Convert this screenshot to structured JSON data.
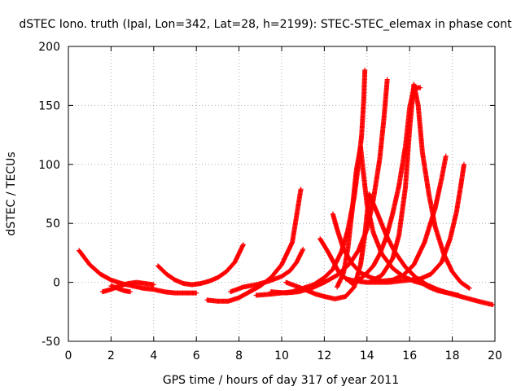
{
  "chart_data": {
    "type": "scatter",
    "title": "dSTEC Iono. truth (Ipal, Lon=342, Lat=28, h=2199): STEC-STEC_elemax in phase cont",
    "xlabel": "GPS time / hours of day 317 of year 2011",
    "ylabel": "dSTEC  / TECUs",
    "xlim": [
      0,
      20
    ],
    "ylim": [
      -50,
      200
    ],
    "xticks": [
      0,
      2,
      4,
      6,
      8,
      10,
      12,
      14,
      16,
      18,
      20
    ],
    "yticks": [
      -50,
      0,
      50,
      100,
      150,
      200
    ],
    "grid": true,
    "legend": "none",
    "marker": "+",
    "color": "#ff0000",
    "series": [
      {
        "x": [
          0.5,
          1.0,
          1.5,
          2.0,
          2.5,
          3.0,
          3.5,
          4.0,
          4.5,
          5.0,
          5.5,
          6.0
        ],
        "y": [
          27,
          15,
          7,
          2,
          -1,
          -3,
          -5,
          -6,
          -8,
          -9,
          -9,
          -9
        ]
      },
      {
        "x": [
          1.6,
          2.0,
          2.4,
          2.8,
          3.2,
          3.6,
          4.0
        ],
        "y": [
          -8,
          -6,
          -3,
          -1,
          0,
          -1,
          -2
        ]
      },
      {
        "x": [
          2.0,
          2.3,
          2.6,
          2.9
        ],
        "y": [
          -3,
          -5,
          -7,
          -8
        ]
      },
      {
        "x": [
          4.2,
          4.6,
          5.0,
          5.4,
          5.8,
          6.2,
          6.6,
          7.0,
          7.4,
          7.8,
          8.2
        ],
        "y": [
          14,
          7,
          2,
          -1,
          -2,
          -1,
          1,
          4,
          9,
          17,
          32
        ]
      },
      {
        "x": [
          6.5,
          7.0,
          7.5,
          8.0,
          8.5,
          9.0,
          9.5,
          10.0,
          10.5,
          10.9
        ],
        "y": [
          -15,
          -16,
          -16,
          -13,
          -8,
          -3,
          4,
          15,
          34,
          79
        ]
      },
      {
        "x": [
          7.6,
          8.2,
          8.8,
          9.4,
          10.0,
          10.4,
          10.7,
          11.0
        ],
        "y": [
          -8,
          -4,
          -2,
          1,
          5,
          10,
          17,
          28
        ]
      },
      {
        "x": [
          8.8,
          9.5,
          10.0,
          10.5,
          11.0,
          11.5,
          12.0,
          12.4,
          12.8,
          13.1,
          13.4,
          13.6,
          13.75,
          13.85,
          13.9
        ],
        "y": [
          -11,
          -10,
          -9,
          -8,
          -5,
          -2,
          4,
          11,
          26,
          44,
          72,
          100,
          125,
          155,
          180
        ]
      },
      {
        "x": [
          9.5,
          10.2,
          10.8,
          11.4,
          12.0,
          12.6,
          13.2,
          13.6,
          14.0,
          14.3,
          14.6,
          14.8,
          14.95
        ],
        "y": [
          -8,
          -9,
          -8,
          -5,
          0,
          6,
          16,
          27,
          45,
          70,
          105,
          140,
          172
        ]
      },
      {
        "x": [
          10.2,
          10.8,
          11.2,
          11.6,
          12.0,
          12.5,
          13.0,
          13.4,
          13.7,
          13.9,
          14.1,
          14.5,
          14.9,
          15.3,
          15.8,
          16.3,
          16.8,
          17.3,
          17.8,
          18.2,
          18.6,
          19.2,
          19.9
        ],
        "y": [
          0,
          -4,
          -7,
          -10,
          -12,
          -14,
          -12,
          -4,
          15,
          40,
          75,
          58,
          40,
          26,
          13,
          4,
          -2,
          -6,
          -9,
          -11,
          -13,
          -16,
          -19
        ]
      },
      {
        "x": [
          11.8,
          12.2,
          12.7,
          13.3,
          13.7,
          14.0,
          14.3,
          14.6,
          14.9,
          15.2,
          15.5,
          15.8,
          16.0,
          16.2,
          16.5
        ],
        "y": [
          37,
          25,
          8,
          -1,
          3,
          8,
          14,
          24,
          38,
          58,
          82,
          115,
          148,
          165,
          165
        ]
      },
      {
        "x": [
          12.4,
          12.6,
          12.9,
          13.3,
          13.7,
          14.2,
          14.7,
          15.2,
          15.7,
          16.2,
          16.7,
          17.2,
          17.5,
          17.7
        ],
        "y": [
          58,
          45,
          28,
          16,
          8,
          4,
          1,
          2,
          6,
          15,
          34,
          63,
          88,
          107
        ]
      },
      {
        "x": [
          12.6,
          12.9,
          13.1,
          13.3,
          13.5,
          13.7,
          13.85,
          14.0,
          14.3,
          14.7,
          15.2,
          15.7,
          16.2,
          16.6,
          16.9,
          17.3,
          17.8,
          18.3
        ],
        "y": [
          -4,
          8,
          28,
          60,
          95,
          115,
          90,
          66,
          42,
          24,
          12,
          5,
          1,
          -1,
          -4,
          -7,
          -9,
          -11
        ]
      },
      {
        "x": [
          13.0,
          13.5,
          14.0,
          14.5,
          15.0,
          15.5,
          16.0,
          16.5,
          17.0,
          17.5,
          17.9,
          18.2,
          18.4,
          18.55
        ],
        "y": [
          3,
          1,
          0,
          0,
          0,
          1,
          2,
          3,
          7,
          17,
          37,
          60,
          82,
          100
        ]
      },
      {
        "x": [
          14.2,
          14.7,
          15.2,
          15.5,
          15.8,
          16.0,
          16.2,
          16.4,
          16.6,
          16.9,
          17.2,
          17.6,
          18.0,
          18.4,
          18.8
        ],
        "y": [
          1,
          6,
          20,
          40,
          80,
          130,
          168,
          150,
          110,
          75,
          47,
          24,
          9,
          0,
          -5
        ]
      }
    ]
  }
}
